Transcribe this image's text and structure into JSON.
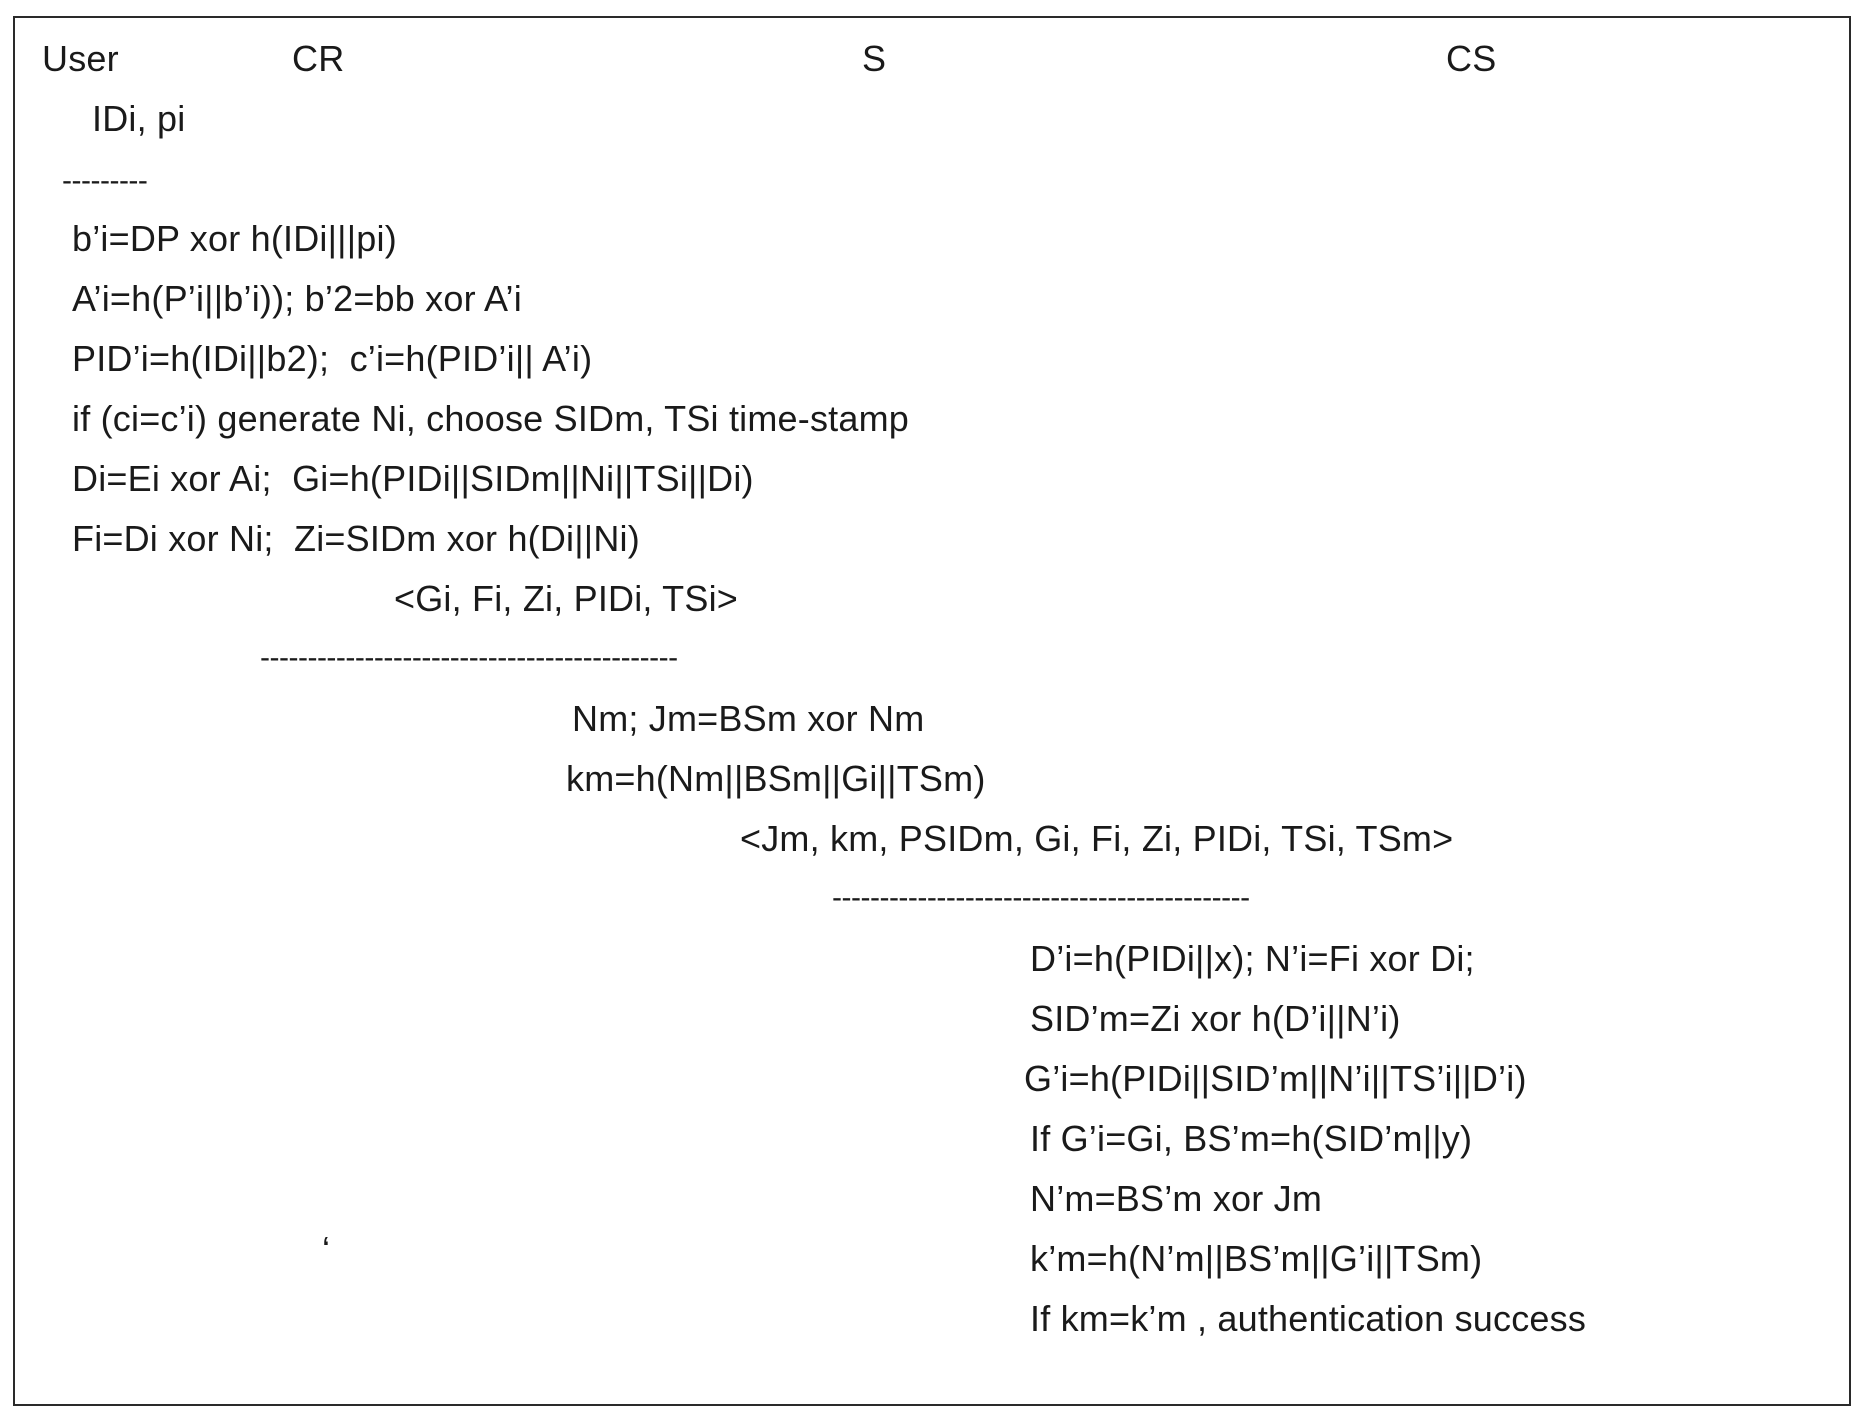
{
  "columns": {
    "user": "User",
    "cr": "CR",
    "s": "S",
    "cs": "CS"
  },
  "user_inputs": "IDi, pi",
  "separators": {
    "user_local": "---------",
    "user_to_s": "--------------------------------------------",
    "s_to_cs": "--------------------------------------------"
  },
  "user_steps": [
    "b’i=DP xor h(IDi|||pi)",
    "A’i=h(P’i||b’i)); b’2=bb xor A’i",
    "PID’i=h(IDi||b2);  c’i=h(PID’i|| A’i)",
    "if (ci=c’i) generate Ni, choose SIDm, TSi time-stamp",
    "Di=Ei xor Ai;  Gi=h(PIDi||SIDm||Ni||TSi||Di)",
    "Fi=Di xor Ni;  Zi=SIDm xor h(Di||Ni)"
  ],
  "message_user_to_s": "<Gi, Fi, Zi, PIDi, TSi>",
  "s_steps": [
    "Nm; Jm=BSm xor Nm",
    "km=h(Nm||BSm||Gi||TSm)"
  ],
  "message_s_to_cs": "<Jm, km, PSIDm, Gi, Fi, Zi, PIDi, TSi, TSm>",
  "cs_steps": [
    "D’i=h(PIDi||x); N’i=Fi xor Di;",
    "SID’m=Zi xor h(D’i||N’i)",
    "G’i=h(PIDi||SID’m||N’i||TS’i||D’i)",
    "If G’i=Gi, BS’m=h(SID’m||y)",
    "N’m=BS’m xor Jm",
    "k’m=h(N’m||BS’m||G’i||TSm)",
    "If km=k’m , authentication success"
  ],
  "stray_mark": "‘"
}
